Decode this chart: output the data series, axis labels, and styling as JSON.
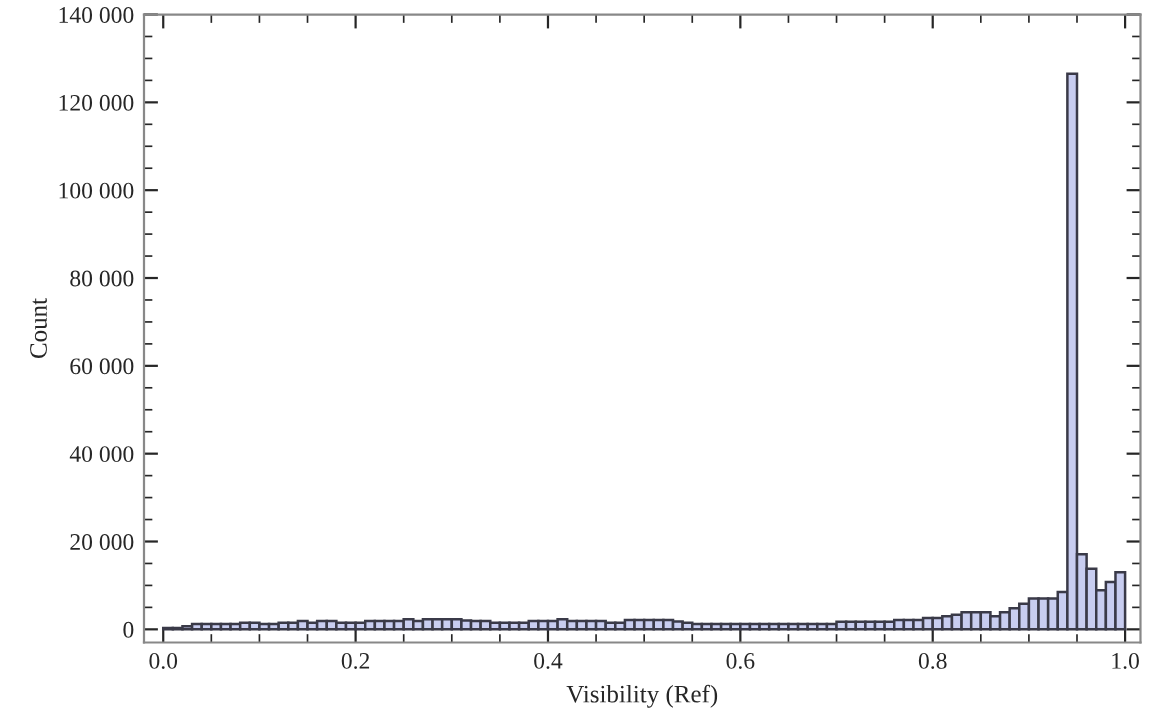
{
  "chart_data": {
    "type": "histogram",
    "xlabel": "Visibility (Ref)",
    "ylabel": "Count",
    "bins": [
      0.0,
      0.01,
      0.02,
      0.03,
      0.04,
      0.05,
      0.06,
      0.07,
      0.08,
      0.09,
      0.1,
      0.11,
      0.12,
      0.13,
      0.14,
      0.15,
      0.16,
      0.17,
      0.18,
      0.19,
      0.2,
      0.21,
      0.22,
      0.23,
      0.24,
      0.25,
      0.26,
      0.27,
      0.28,
      0.29,
      0.3,
      0.31,
      0.32,
      0.33,
      0.34,
      0.35,
      0.36,
      0.37,
      0.38,
      0.39,
      0.4,
      0.41,
      0.42,
      0.43,
      0.44,
      0.45,
      0.46,
      0.47,
      0.48,
      0.49,
      0.5,
      0.51,
      0.52,
      0.53,
      0.54,
      0.55,
      0.56,
      0.57,
      0.58,
      0.59,
      0.6,
      0.61,
      0.62,
      0.63,
      0.64,
      0.65,
      0.66,
      0.67,
      0.68,
      0.69,
      0.7,
      0.71,
      0.72,
      0.73,
      0.74,
      0.75,
      0.76,
      0.77,
      0.78,
      0.79,
      0.8,
      0.81,
      0.82,
      0.83,
      0.84,
      0.85,
      0.86,
      0.87,
      0.88,
      0.89,
      0.9,
      0.91,
      0.92,
      0.93,
      0.94,
      0.95,
      0.96,
      0.97,
      0.98,
      0.99,
      1.0
    ],
    "values": [
      300,
      300,
      700,
      1200,
      1200,
      1200,
      1200,
      1200,
      1500,
      1500,
      1200,
      1200,
      1500,
      1500,
      1900,
      1500,
      1900,
      1900,
      1500,
      1500,
      1500,
      1900,
      1900,
      1900,
      1900,
      2300,
      1900,
      2300,
      2300,
      2300,
      2300,
      2000,
      1900,
      1900,
      1500,
      1500,
      1500,
      1500,
      1900,
      1900,
      1900,
      2300,
      1900,
      1900,
      1900,
      1900,
      1500,
      1500,
      2100,
      2100,
      2100,
      2100,
      2100,
      1800,
      1500,
      1200,
      1200,
      1200,
      1200,
      1200,
      1200,
      1200,
      1200,
      1200,
      1200,
      1200,
      1200,
      1200,
      1200,
      1200,
      1700,
      1700,
      1700,
      1700,
      1700,
      1700,
      2100,
      2100,
      2100,
      2600,
      2600,
      3000,
      3300,
      3900,
      3900,
      3900,
      3000,
      3900,
      4800,
      5800,
      7000,
      7000,
      7000,
      8500,
      126500,
      17100,
      13800,
      8900,
      10800,
      13000
    ],
    "color": "#c8cdf0",
    "xlim": [
      -0.02,
      1.016
    ],
    "ylim": [
      -3000,
      140000
    ],
    "xticks": [
      {
        "value": 0,
        "label": "0.0"
      },
      0.2,
      0.4,
      0.6,
      0.8,
      {
        "value": 1,
        "label": "1.0"
      }
    ],
    "yticks": [
      0,
      {
        "value": 20000,
        "label": "20 000"
      },
      {
        "value": 40000,
        "label": "40 000"
      },
      {
        "value": 60000,
        "label": "60 000"
      },
      {
        "value": 80000,
        "label": "80 000"
      },
      {
        "value": 100000,
        "label": "100 000"
      },
      {
        "value": 120000,
        "label": "120 000"
      },
      {
        "value": 140000,
        "label": "140 000"
      }
    ],
    "grid": false
  }
}
